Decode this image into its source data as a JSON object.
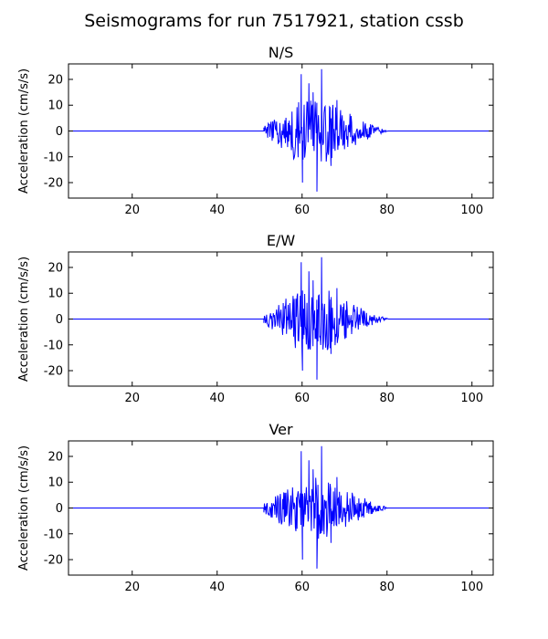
{
  "figure": {
    "title": "Seismograms for run 7517921, station cssb"
  },
  "line_color": "#0000ff",
  "chart_data": [
    {
      "type": "line",
      "title": "N/S",
      "xlabel": "",
      "ylabel": "Acceleration (cm/s/s)",
      "xlim": [
        5,
        105
      ],
      "ylim": [
        -26,
        26
      ],
      "xticks": [
        20,
        40,
        60,
        80,
        100
      ],
      "yticks": [
        20,
        10,
        0,
        -10,
        -20
      ],
      "grid": false,
      "legend": "none",
      "signal": {
        "start": 51,
        "end": 80,
        "peak_max": 24,
        "peak_min": -23.5
      },
      "peaks": [
        {
          "x": 59.8,
          "y": 22
        },
        {
          "x": 60.1,
          "y": -20
        },
        {
          "x": 61.6,
          "y": 18.5
        },
        {
          "x": 62.6,
          "y": 15
        },
        {
          "x": 63.5,
          "y": -23.5
        },
        {
          "x": 64.6,
          "y": 24
        },
        {
          "x": 66.8,
          "y": -13.5
        },
        {
          "x": 68.2,
          "y": 12
        }
      ]
    },
    {
      "type": "line",
      "title": "E/W",
      "xlabel": "",
      "ylabel": "Acceleration (cm/s/s)",
      "xlim": [
        5,
        105
      ],
      "ylim": [
        -26,
        26
      ],
      "xticks": [
        20,
        40,
        60,
        80,
        100
      ],
      "yticks": [
        20,
        10,
        0,
        -10,
        -20
      ],
      "grid": false,
      "legend": "none",
      "signal": {
        "start": 51,
        "end": 80,
        "peak_max": 24,
        "peak_min": -23.5
      },
      "peaks": [
        {
          "x": 59.8,
          "y": 22
        },
        {
          "x": 60.1,
          "y": -20
        },
        {
          "x": 61.6,
          "y": 18.5
        },
        {
          "x": 62.6,
          "y": 15
        },
        {
          "x": 63.5,
          "y": -23.5
        },
        {
          "x": 64.6,
          "y": 24
        },
        {
          "x": 66.8,
          "y": -13.5
        },
        {
          "x": 68.2,
          "y": 12
        }
      ]
    },
    {
      "type": "line",
      "title": "Ver",
      "xlabel": "",
      "ylabel": "Acceleration (cm/s/s)",
      "xlim": [
        5,
        105
      ],
      "ylim": [
        -26,
        26
      ],
      "xticks": [
        20,
        40,
        60,
        80,
        100
      ],
      "yticks": [
        20,
        10,
        0,
        -10,
        -20
      ],
      "grid": false,
      "legend": "none",
      "signal": {
        "start": 51,
        "end": 80,
        "peak_max": 24,
        "peak_min": -23.5
      },
      "peaks": [
        {
          "x": 59.8,
          "y": 22
        },
        {
          "x": 60.1,
          "y": -20
        },
        {
          "x": 61.6,
          "y": 18.5
        },
        {
          "x": 62.6,
          "y": 15
        },
        {
          "x": 63.5,
          "y": -23.5
        },
        {
          "x": 64.6,
          "y": 24
        },
        {
          "x": 66.8,
          "y": -13.5
        },
        {
          "x": 68.2,
          "y": 12
        }
      ]
    }
  ]
}
